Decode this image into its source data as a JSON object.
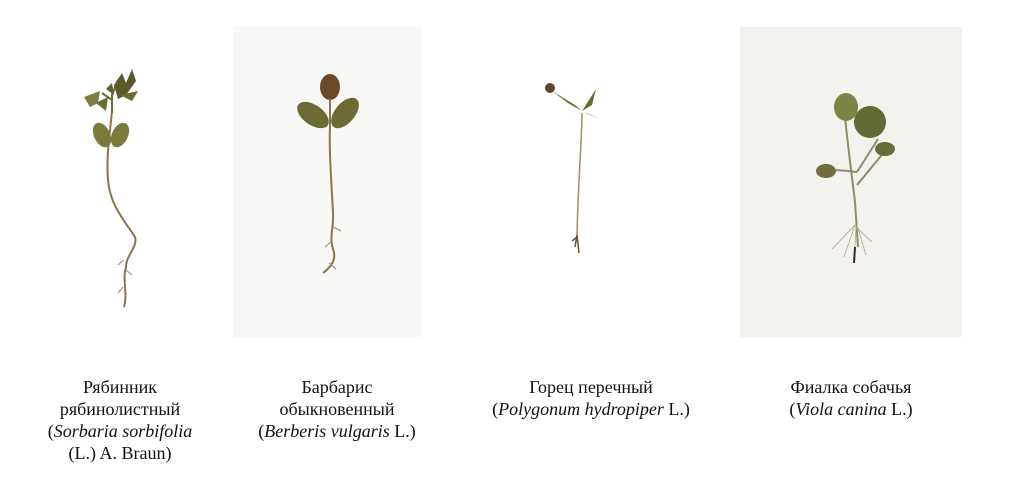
{
  "plants": [
    {
      "caption_lines": [
        {
          "parts": [
            {
              "text": "Рябинник",
              "italic": false
            }
          ]
        },
        {
          "parts": [
            {
              "text": "рябинолистный",
              "italic": false
            }
          ]
        },
        {
          "parts": [
            {
              "text": "(",
              "italic": false
            },
            {
              "text": "Sorbaria sorbifolia",
              "italic": true
            }
          ]
        },
        {
          "parts": [
            {
              "text": "(L.) A. Braun)",
              "italic": false
            }
          ]
        }
      ]
    },
    {
      "caption_lines": [
        {
          "parts": [
            {
              "text": "Барбарис",
              "italic": false
            }
          ]
        },
        {
          "parts": [
            {
              "text": "обыкновенный",
              "italic": false
            }
          ]
        },
        {
          "parts": [
            {
              "text": "(",
              "italic": false
            },
            {
              "text": "Berberis vulgaris",
              "italic": true
            },
            {
              "text": " L.)",
              "italic": false
            }
          ]
        }
      ]
    },
    {
      "caption_lines": [
        {
          "parts": [
            {
              "text": "Горец перечный",
              "italic": false
            }
          ]
        },
        {
          "parts": [
            {
              "text": "(",
              "italic": false
            },
            {
              "text": "Polygonum hydropiper",
              "italic": true
            },
            {
              "text": " L.)",
              "italic": false
            }
          ]
        }
      ]
    },
    {
      "caption_lines": [
        {
          "parts": [
            {
              "text": "Фиалка собачья",
              "italic": false
            }
          ]
        },
        {
          "parts": [
            {
              "text": "(",
              "italic": false
            },
            {
              "text": "Viola canina",
              "italic": true
            },
            {
              "text": " L.)",
              "italic": false
            }
          ]
        }
      ]
    }
  ]
}
